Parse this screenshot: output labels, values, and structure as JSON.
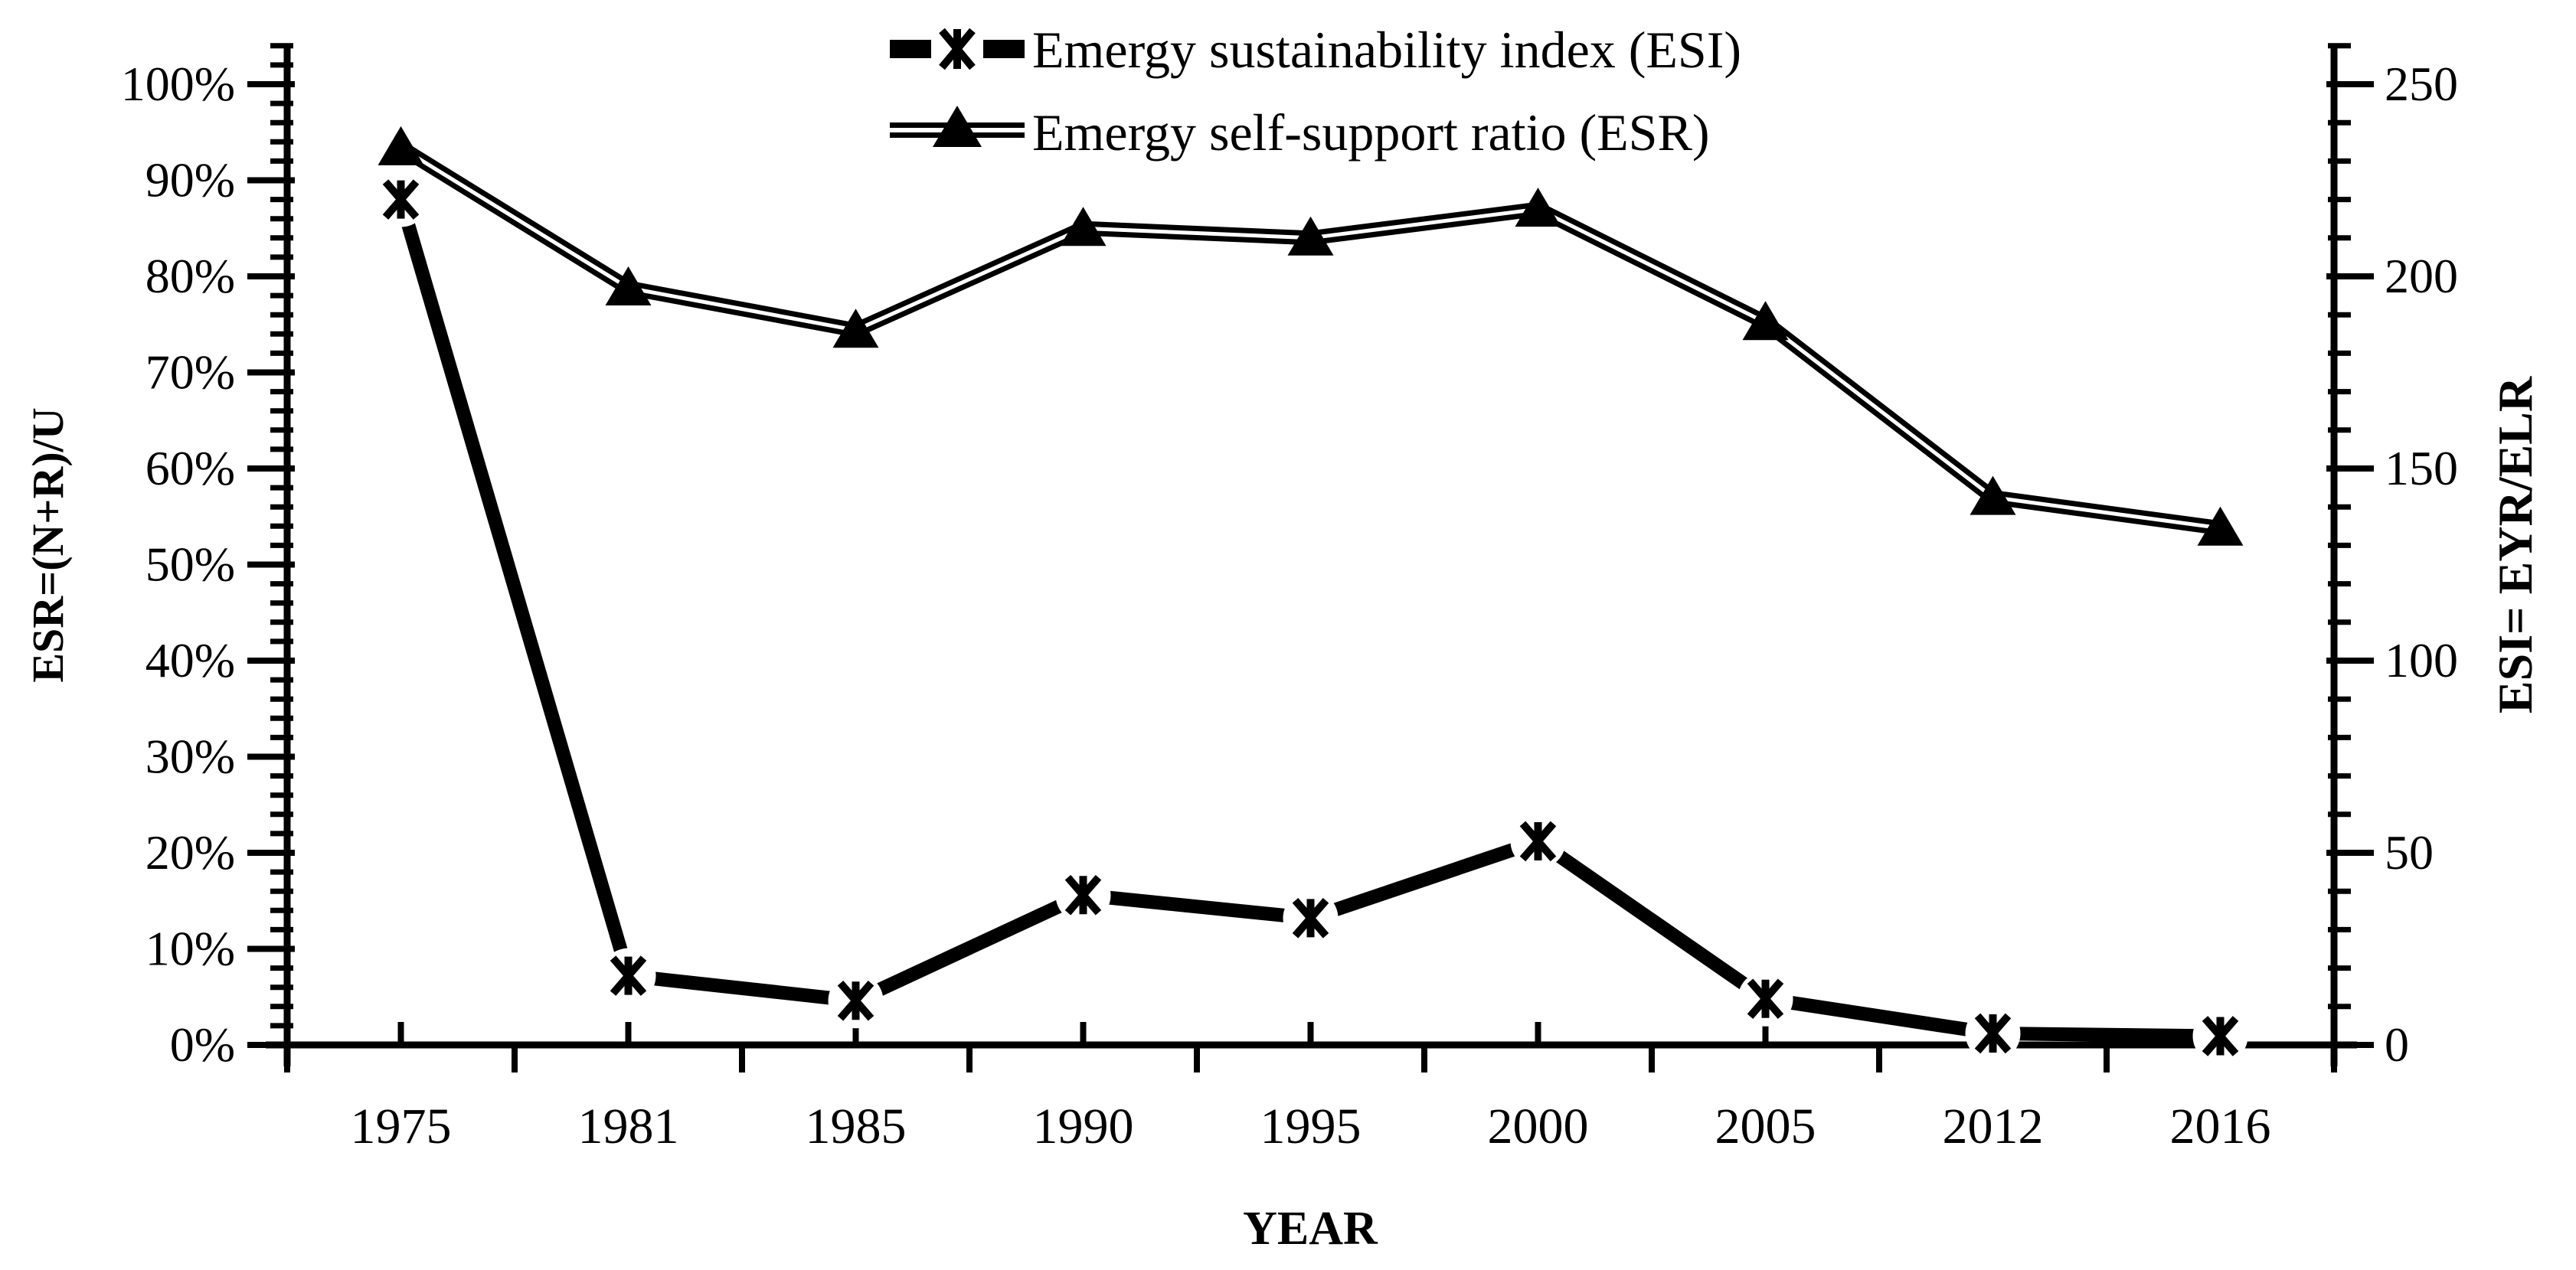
{
  "chart_data": {
    "type": "line",
    "title": "",
    "categories": [
      "1975",
      "1981",
      "1985",
      "1990",
      "1995",
      "2000",
      "2005",
      "2012",
      "2016"
    ],
    "series": [
      {
        "name": "Emergy sustainability index (ESI)",
        "axis": "right",
        "marker": "star",
        "line_style": "thick-solid",
        "values": [
          220,
          18,
          11.5,
          39,
          33,
          53,
          12,
          3,
          2.3
        ]
      },
      {
        "name": "Emergy self-support ratio (ESR)",
        "axis": "left",
        "marker": "triangle",
        "line_style": "double",
        "values": [
          93.4,
          78.8,
          74.4,
          85,
          84,
          87,
          75.2,
          57,
          53.8
        ]
      }
    ],
    "left_axis": {
      "title": "ESR=(N+R)/U",
      "min": 0,
      "max": 100,
      "major_step": 10,
      "minor_step": 2,
      "format": "percent",
      "tick_labels": [
        "0%",
        "10%",
        "20%",
        "30%",
        "40%",
        "50%",
        "60%",
        "70%",
        "80%",
        "90%",
        "100%"
      ]
    },
    "right_axis": {
      "title": "ESI= EYR/ELR",
      "min": 0,
      "max": 250,
      "major_step": 50,
      "minor_step": 10,
      "tick_labels": [
        "0",
        "50",
        "100",
        "150",
        "200",
        "250"
      ]
    },
    "x_axis": {
      "title": "YEAR"
    },
    "legend_position": "top",
    "grid": "off",
    "colors": {
      "foreground": "#000000",
      "background": "#ffffff"
    }
  }
}
